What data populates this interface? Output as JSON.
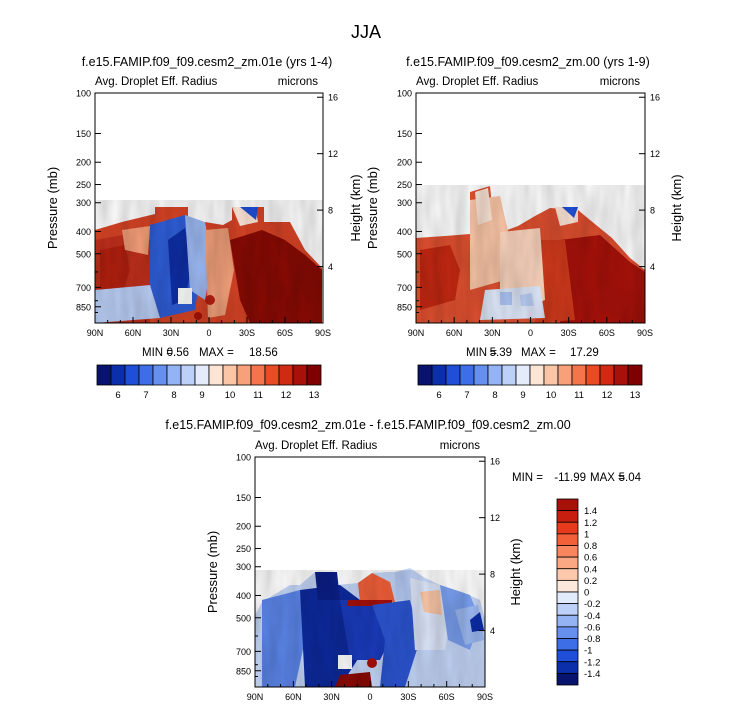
{
  "page_title": "JJA",
  "chart_data": [
    {
      "type": "heatmap",
      "title": "f.e15.FAMIP.f09_f09.cesm2_zm.01e (yrs 1-4)",
      "left_label": "Avg. Droplet Eff. Radius",
      "right_label": "microns",
      "xlabel": "",
      "ylabel": "Pressure (mb)",
      "y2label": "Height (km)",
      "x_ticks": [
        "90N",
        "60N",
        "30N",
        "0",
        "30S",
        "60S",
        "90S"
      ],
      "y_ticks": [
        "100",
        "150",
        "200",
        "250",
        "300",
        "400",
        "500",
        "700",
        "850"
      ],
      "y2_ticks": [
        "16",
        "12",
        "8",
        "4"
      ],
      "min_label": "MIN =",
      "min_value": "0.56",
      "max_label": "MAX =",
      "max_value": "18.56",
      "colorbar": {
        "orientation": "horizontal",
        "labels": [
          "6",
          "7",
          "8",
          "9",
          "10",
          "11",
          "12",
          "13"
        ],
        "colors": [
          "#08136e",
          "#0b2eaa",
          "#1f4fd8",
          "#3d6ee8",
          "#6690ee",
          "#93b3f4",
          "#bcd0f8",
          "#e4ecfb",
          "#fde5d6",
          "#fbc6a7",
          "#f8a07a",
          "#f4744c",
          "#ea4a24",
          "#d02a12",
          "#a8100a",
          "#7e0000"
        ]
      }
    },
    {
      "type": "heatmap",
      "title": "f.e15.FAMIP.f09_f09.cesm2_zm.00 (yrs 1-9)",
      "left_label": "Avg. Droplet Eff. Radius",
      "right_label": "microns",
      "xlabel": "",
      "ylabel": "Pressure (mb)",
      "y2label": "Height (km)",
      "x_ticks": [
        "90N",
        "60N",
        "30N",
        "0",
        "30S",
        "60S",
        "90S"
      ],
      "y_ticks": [
        "100",
        "150",
        "200",
        "250",
        "300",
        "400",
        "500",
        "700",
        "850"
      ],
      "y2_ticks": [
        "16",
        "12",
        "8",
        "4"
      ],
      "min_label": "MIN =",
      "min_value": "5.39",
      "max_label": "MAX =",
      "max_value": "17.29",
      "colorbar": {
        "orientation": "horizontal",
        "labels": [
          "6",
          "7",
          "8",
          "9",
          "10",
          "11",
          "12",
          "13"
        ],
        "colors": [
          "#08136e",
          "#0b2eaa",
          "#1f4fd8",
          "#3d6ee8",
          "#6690ee",
          "#93b3f4",
          "#bcd0f8",
          "#e4ecfb",
          "#fde5d6",
          "#fbc6a7",
          "#f8a07a",
          "#f4744c",
          "#ea4a24",
          "#d02a12",
          "#a8100a",
          "#7e0000"
        ]
      }
    },
    {
      "type": "heatmap",
      "title": "f.e15.FAMIP.f09_f09.cesm2_zm.01e - f.e15.FAMIP.f09_f09.cesm2_zm.00",
      "left_label": "Avg. Droplet Eff. Radius",
      "right_label": "microns",
      "xlabel": "",
      "ylabel": "Pressure (mb)",
      "y2label": "Height (km)",
      "x_ticks": [
        "90N",
        "60N",
        "30N",
        "0",
        "30S",
        "60S",
        "90S"
      ],
      "y_ticks": [
        "100",
        "150",
        "200",
        "250",
        "300",
        "400",
        "500",
        "700",
        "850"
      ],
      "y2_ticks": [
        "16",
        "12",
        "8",
        "4"
      ],
      "min_label": "MIN =",
      "min_value": "-11.99",
      "max_label": "MAX =",
      "max_value": "5.04",
      "colorbar": {
        "orientation": "vertical",
        "labels": [
          "1.4",
          "1.2",
          "1",
          "0.8",
          "0.6",
          "0.4",
          "0.2",
          "0",
          "-0.2",
          "-0.4",
          "-0.6",
          "-0.8",
          "-1",
          "-1.2",
          "-1.4"
        ],
        "colors": [
          "#a8100a",
          "#c81e10",
          "#e63a1c",
          "#f2603a",
          "#f7855e",
          "#faa884",
          "#fcc9ad",
          "#fde8dc",
          "#e2ebfb",
          "#bcd0f8",
          "#93b3f4",
          "#6690ee",
          "#3d6ee8",
          "#1f4fd8",
          "#0b2eaa",
          "#08136e"
        ]
      }
    }
  ]
}
